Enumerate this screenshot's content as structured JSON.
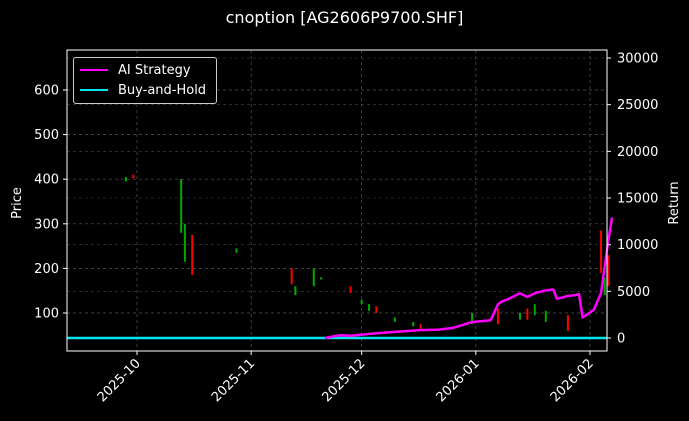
{
  "chart_data": {
    "type": "line",
    "title": "cnoption [AG2606P9700.SHF]",
    "xlabel": "",
    "ylabel": "Price",
    "ylabel_right": "Return",
    "x_ticks": [
      "2025-10",
      "2025-11",
      "2025-12",
      "2026-01",
      "2026-02"
    ],
    "y_ticks_left": [
      100,
      200,
      300,
      400,
      500,
      600
    ],
    "y_ticks_right": [
      0,
      5000,
      10000,
      15000,
      20000,
      25000,
      30000
    ],
    "ylim_left": [
      15,
      690
    ],
    "ylim_right": [
      -1300,
      30800
    ],
    "grid": true,
    "legend_position": "upper left",
    "legend": [
      "AI Strategy",
      "Buy-and-Hold"
    ],
    "colors": {
      "ai_strategy": "#ff00ff",
      "buy_and_hold": "#00e5ee",
      "up": "#00aa00",
      "down": "#ff0000",
      "background": "#000000"
    },
    "series": [
      {
        "name": "AI Strategy",
        "axis": "right",
        "x": [
          "2025-11-21",
          "2025-11-25",
          "2025-11-28",
          "2025-12-05",
          "2025-12-10",
          "2025-12-17",
          "2025-12-22",
          "2025-12-26",
          "2025-12-31",
          "2026-01-05",
          "2026-01-07",
          "2026-01-08",
          "2026-01-10",
          "2026-01-13",
          "2026-01-15",
          "2026-01-17",
          "2026-01-20",
          "2026-01-22",
          "2026-01-23",
          "2026-01-26",
          "2026-01-28",
          "2026-01-29",
          "2026-01-30",
          "2026-02-02",
          "2026-02-04",
          "2026-02-06",
          "2026-02-07"
        ],
        "values": [
          0,
          300,
          250,
          500,
          650,
          850,
          900,
          1100,
          1700,
          1900,
          3600,
          3900,
          4200,
          4800,
          4400,
          4800,
          5100,
          5200,
          4200,
          4500,
          4600,
          4700,
          2200,
          3000,
          4800,
          10500,
          12900
        ]
      },
      {
        "name": "Buy-and-Hold",
        "axis": "right",
        "x": [
          "2025-09-11",
          "2026-02-07"
        ],
        "values": [
          0,
          0
        ]
      },
      {
        "name": "Candles",
        "axis": "left",
        "type": "candlestick",
        "candles": [
          {
            "x": "2025-09-28",
            "open": 405,
            "close": 395,
            "dir": "up"
          },
          {
            "x": "2025-09-30",
            "open": 410,
            "close": 402,
            "dir": "down"
          },
          {
            "x": "2025-10-13",
            "open": 400,
            "close": 280,
            "dir": "up"
          },
          {
            "x": "2025-10-14",
            "open": 300,
            "close": 215,
            "dir": "up"
          },
          {
            "x": "2025-10-16",
            "open": 275,
            "close": 185,
            "dir": "down"
          },
          {
            "x": "2025-10-28",
            "open": 245,
            "close": 235,
            "dir": "up"
          },
          {
            "x": "2025-11-12",
            "open": 200,
            "close": 165,
            "dir": "down"
          },
          {
            "x": "2025-11-13",
            "open": 160,
            "close": 140,
            "dir": "up"
          },
          {
            "x": "2025-11-18",
            "open": 200,
            "close": 160,
            "dir": "up"
          },
          {
            "x": "2025-11-20",
            "open": 180,
            "close": 175,
            "dir": "up"
          },
          {
            "x": "2025-11-28",
            "open": 160,
            "close": 145,
            "dir": "down"
          },
          {
            "x": "2025-12-01",
            "open": 130,
            "close": 120,
            "dir": "up"
          },
          {
            "x": "2025-12-03",
            "open": 120,
            "close": 105,
            "dir": "up"
          },
          {
            "x": "2025-12-05",
            "open": 115,
            "close": 100,
            "dir": "down"
          },
          {
            "x": "2025-12-10",
            "open": 90,
            "close": 80,
            "dir": "up"
          },
          {
            "x": "2025-12-15",
            "open": 80,
            "close": 70,
            "dir": "up"
          },
          {
            "x": "2025-12-17",
            "open": 75,
            "close": 60,
            "dir": "down"
          },
          {
            "x": "2025-12-31",
            "open": 100,
            "close": 75,
            "dir": "up"
          },
          {
            "x": "2026-01-07",
            "open": 110,
            "close": 75,
            "dir": "down"
          },
          {
            "x": "2026-01-13",
            "open": 100,
            "close": 85,
            "dir": "up"
          },
          {
            "x": "2026-01-15",
            "open": 110,
            "close": 85,
            "dir": "down"
          },
          {
            "x": "2026-01-17",
            "open": 120,
            "close": 95,
            "dir": "up"
          },
          {
            "x": "2026-01-20",
            "open": 105,
            "close": 80,
            "dir": "up"
          },
          {
            "x": "2026-01-26",
            "open": 95,
            "close": 60,
            "dir": "down"
          },
          {
            "x": "2026-02-04",
            "open": 285,
            "close": 190,
            "dir": "down"
          },
          {
            "x": "2026-02-05",
            "open": 180,
            "close": 140,
            "dir": "up"
          },
          {
            "x": "2026-02-06",
            "open": 230,
            "close": 160,
            "dir": "down"
          }
        ]
      }
    ]
  }
}
